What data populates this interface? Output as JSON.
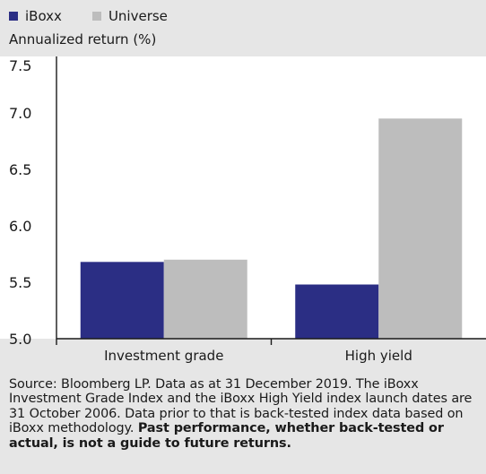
{
  "chart_data": {
    "type": "bar",
    "categories": [
      "Investment grade",
      "High yield"
    ],
    "series": [
      {
        "name": "iBoxx",
        "values": [
          5.68,
          5.48
        ],
        "color": "#2b2e84"
      },
      {
        "name": "Universe",
        "values": [
          5.7,
          6.95
        ],
        "color": "#bdbdbd"
      }
    ],
    "xlabel": "",
    "ylabel": "Annualized return (%)",
    "ylim": [
      5.0,
      7.5
    ],
    "yticks": [
      "5.0",
      "5.5",
      "6.0",
      "6.5",
      "7.0",
      "7.5"
    ],
    "grid": false,
    "legend": "top-left"
  },
  "source": {
    "text": "Source: Bloomberg LP. Data as at 31 December 2019. The iBoxx Investment Grade Index and the iBoxx High Yield index launch dates are 31 October 2006. Data prior to that is back-tested index data based on iBoxx methodology. ",
    "bold": "Past performance, whether back-tested or actual, is not a guide to future returns."
  }
}
